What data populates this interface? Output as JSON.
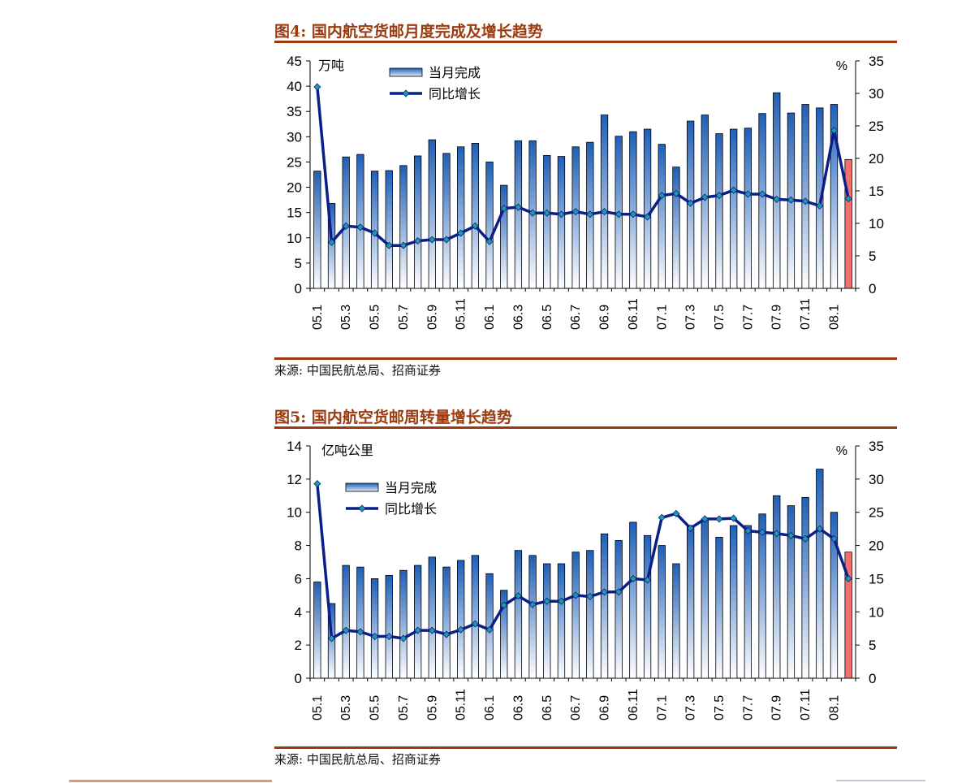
{
  "figures": [
    {
      "title": "图4:  国内航空货邮月度完成及增长趋势",
      "source": "来源:  中国民航总局、招商证券"
    },
    {
      "title": "图5:  国内航空货邮周转量增长趋势",
      "source": "来源:  中国民航总局、招商证券"
    }
  ],
  "chart_data": [
    {
      "type": "bar",
      "title": "图4:  国内航空货邮月度完成及增长趋势",
      "left_unit": "万吨",
      "right_unit": "%",
      "ylim_left": [
        0,
        45
      ],
      "ylim_right": [
        0,
        35
      ],
      "yticks_left": [
        0,
        5,
        10,
        15,
        20,
        25,
        30,
        35,
        40,
        45
      ],
      "yticks_right": [
        0,
        5,
        10,
        15,
        20,
        25,
        30,
        35
      ],
      "tick_labels": [
        "05.1",
        "05.3",
        "05.5",
        "05.7",
        "05.9",
        "05.11",
        "06.1",
        "06.3",
        "06.5",
        "06.7",
        "06.9",
        "06.11",
        "07.1",
        "07.3",
        "07.5",
        "07.7",
        "07.9",
        "07.11",
        "08.1"
      ],
      "legend": [
        "当月完成",
        "同比增长"
      ],
      "legend_position": "top-left",
      "colors": {
        "bar_top": "#1f5fb8",
        "bar_bottom": "#ffffff",
        "line": "#0b1f8a",
        "marker": "#1e9aa5",
        "highlight": "#f0716e"
      },
      "series": [
        {
          "name": "当月完成",
          "axis": "left",
          "values": [
            23.2,
            16.8,
            26.0,
            26.5,
            23.2,
            23.3,
            24.3,
            26.2,
            29.4,
            26.7,
            28.0,
            28.7,
            25.0,
            20.4,
            29.2,
            29.2,
            26.3,
            26.1,
            28.0,
            28.9,
            34.3,
            30.1,
            31.0,
            31.5,
            28.5,
            24.0,
            33.1,
            34.3,
            30.6,
            31.5,
            31.7,
            34.6,
            38.7,
            34.7,
            36.4,
            35.7,
            36.4,
            25.5
          ]
        },
        {
          "name": "同比增长",
          "axis": "right",
          "values": [
            31.0,
            7.1,
            9.6,
            9.4,
            8.5,
            6.6,
            6.6,
            7.3,
            7.5,
            7.5,
            8.5,
            9.6,
            7.2,
            12.3,
            12.5,
            11.6,
            11.6,
            11.4,
            11.8,
            11.4,
            11.8,
            11.4,
            11.4,
            11.0,
            14.3,
            14.6,
            13.1,
            14.0,
            14.3,
            15.1,
            14.5,
            14.5,
            13.7,
            13.6,
            13.4,
            12.7,
            24.3,
            13.8
          ]
        }
      ]
    },
    {
      "type": "bar",
      "title": "图5:  国内航空货邮周转量增长趋势",
      "left_unit": "亿吨公里",
      "right_unit": "%",
      "ylim_left": [
        0,
        14
      ],
      "ylim_right": [
        0,
        35
      ],
      "yticks_left": [
        0,
        2,
        4,
        6,
        8,
        10,
        12,
        14
      ],
      "yticks_right": [
        0,
        5,
        10,
        15,
        20,
        25,
        30,
        35
      ],
      "tick_labels": [
        "05.1",
        "05.3",
        "05.5",
        "05.7",
        "05.9",
        "05.11",
        "06.1",
        "06.3",
        "06.5",
        "06.7",
        "06.9",
        "06.11",
        "07.1",
        "07.3",
        "07.5",
        "07.7",
        "07.9",
        "07.11",
        "08.1"
      ],
      "legend": [
        "当月完成",
        "同比增长"
      ],
      "legend_position": "top-left",
      "colors": {
        "bar_top": "#1f5fb8",
        "bar_bottom": "#ffffff",
        "line": "#0b1f8a",
        "marker": "#1e9aa5",
        "highlight": "#f0716e"
      },
      "series": [
        {
          "name": "当月完成",
          "axis": "left",
          "values": [
            5.8,
            4.5,
            6.8,
            6.7,
            6.0,
            6.2,
            6.5,
            6.8,
            7.3,
            6.7,
            7.1,
            7.4,
            6.3,
            5.3,
            7.7,
            7.4,
            6.9,
            6.9,
            7.6,
            7.7,
            8.7,
            8.3,
            9.4,
            8.6,
            8.0,
            6.9,
            9.2,
            9.6,
            8.5,
            9.2,
            9.2,
            9.9,
            11.0,
            10.4,
            10.9,
            12.6,
            10.0,
            7.6
          ]
        },
        {
          "name": "同比增长",
          "axis": "right",
          "values": [
            29.3,
            6.0,
            7.2,
            7.0,
            6.3,
            6.3,
            6.0,
            7.2,
            7.2,
            6.6,
            7.3,
            8.2,
            7.3,
            11.0,
            12.4,
            11.1,
            11.6,
            11.6,
            12.5,
            12.3,
            13.0,
            13.0,
            15.0,
            14.8,
            24.2,
            24.8,
            22.6,
            24.0,
            24.0,
            24.1,
            22.2,
            22.0,
            21.8,
            21.5,
            21.0,
            22.5,
            21.0,
            15.0
          ]
        }
      ]
    }
  ]
}
